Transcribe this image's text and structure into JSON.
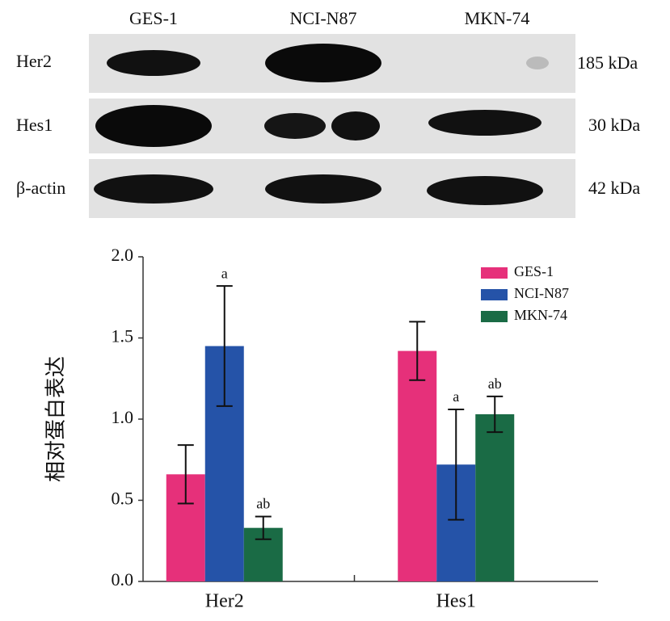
{
  "blot": {
    "lanes": [
      "GES-1",
      "NCI-N87",
      "MKN-74"
    ],
    "rows": [
      {
        "protein": "Her2",
        "size": "185 kDa"
      },
      {
        "protein": "Hes1",
        "size": "30 kDa"
      },
      {
        "protein": "β-actin",
        "size": "42 kDa"
      }
    ]
  },
  "chart_data": {
    "type": "bar",
    "ylabel": "相对蛋白表达",
    "categories": [
      "Her2",
      "Hes1"
    ],
    "series": [
      {
        "name": "GES-1",
        "color": "#e6307a",
        "values": [
          0.66,
          1.42
        ],
        "errors": [
          0.18,
          0.18
        ],
        "labels": [
          null,
          null
        ]
      },
      {
        "name": "NCI-N87",
        "color": "#2553a8",
        "values": [
          1.45,
          0.72
        ],
        "errors": [
          0.37,
          0.34
        ],
        "labels": [
          "a",
          "a"
        ]
      },
      {
        "name": "MKN-74",
        "color": "#1a6b45",
        "values": [
          0.33,
          1.03
        ],
        "errors": [
          0.07,
          0.11
        ],
        "labels": [
          "ab",
          "ab"
        ]
      }
    ],
    "ylim": [
      0,
      2
    ],
    "yticks": [
      {
        "value": 0,
        "label": "0.0"
      },
      {
        "value": 0.5,
        "label": "0.5"
      },
      {
        "value": 1,
        "label": "1.0"
      },
      {
        "value": 1.5,
        "label": "1.5"
      },
      {
        "value": 2,
        "label": "2.0"
      }
    ],
    "legend": "upper right"
  }
}
